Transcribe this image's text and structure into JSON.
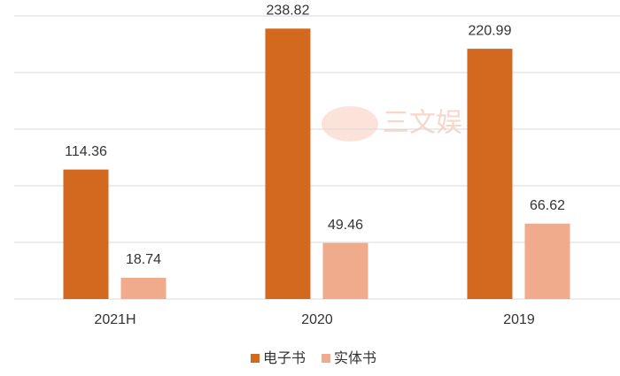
{
  "chart_data": {
    "type": "bar",
    "watermark": "三文娱",
    "categories": [
      "2021H",
      "2020",
      "2019"
    ],
    "series": [
      {
        "name": "电子书",
        "color": "#d2691f",
        "values": [
          114.36,
          238.82,
          220.99
        ]
      },
      {
        "name": "实体书",
        "color": "#f0aa8c",
        "values": [
          18.74,
          49.46,
          66.62
        ]
      }
    ],
    "ylim": [
      0,
      250
    ],
    "yticks": [
      0,
      50,
      100,
      150,
      200,
      250
    ],
    "grid": true,
    "legend": "bottom"
  }
}
